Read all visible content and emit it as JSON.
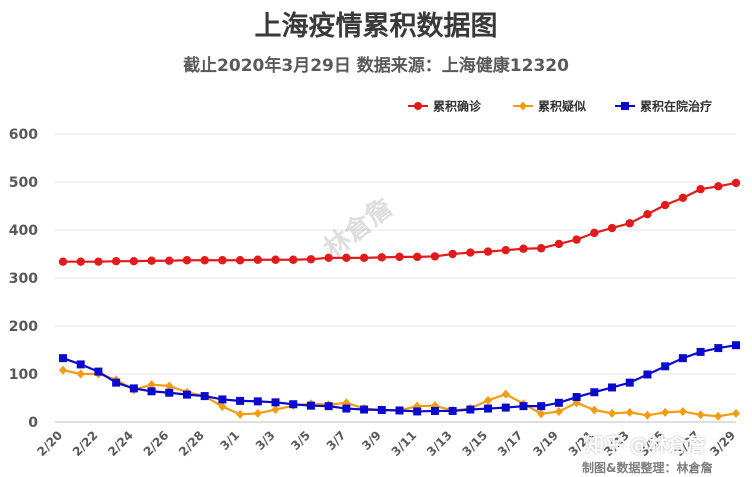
{
  "title": "上海疫情累积数据图",
  "subtitle": "截止2020年3月29日 数据来源：上海健康12320",
  "watermark": "林倉詹",
  "zhihu_watermark": "知乎 @林倉詹",
  "credit": "制图&数据整理：林倉詹",
  "chart_data": {
    "type": "line",
    "title": "上海疫情累积数据图",
    "subtitle": "截止2020年3月29日 数据来源：上海健康12320",
    "ylim": [
      0,
      600
    ],
    "yticks": [
      0,
      100,
      200,
      300,
      400,
      500,
      600
    ],
    "grid": true,
    "legend_position": "top-right",
    "x": [
      "2/20",
      "2/21",
      "2/22",
      "2/23",
      "2/24",
      "2/25",
      "2/26",
      "2/27",
      "2/28",
      "2/29",
      "3/1",
      "3/2",
      "3/3",
      "3/4",
      "3/5",
      "3/6",
      "3/7",
      "3/8",
      "3/9",
      "3/10",
      "3/11",
      "3/12",
      "3/13",
      "3/14",
      "3/15",
      "3/16",
      "3/17",
      "3/18",
      "3/19",
      "3/20",
      "3/21",
      "3/22",
      "3/23",
      "3/24",
      "3/25",
      "3/26",
      "3/27",
      "3/28",
      "3/29"
    ],
    "xtick_labels": [
      "2/20",
      "2/22",
      "2/24",
      "2/26",
      "2/28",
      "3/1",
      "3/3",
      "3/5",
      "3/7",
      "3/9",
      "3/11",
      "3/13",
      "3/15",
      "3/17",
      "3/19",
      "3/21",
      "3/23",
      "3/25",
      "3/27",
      "3/29"
    ],
    "series": [
      {
        "name": "累积确诊",
        "color": "#e31a1c",
        "marker": "circle",
        "values": [
          334,
          334,
          334,
          335,
          335,
          336,
          336,
          337,
          337,
          337,
          337,
          338,
          338,
          338,
          339,
          342,
          342,
          342,
          343,
          344,
          344,
          345,
          350,
          353,
          355,
          358,
          361,
          362,
          371,
          380,
          394,
          404,
          414,
          433,
          452,
          467,
          485,
          491,
          498
        ]
      },
      {
        "name": "累积疑似",
        "color": "#f39c12",
        "marker": "diamond",
        "values": [
          108,
          100,
          100,
          88,
          67,
          78,
          75,
          62,
          54,
          32,
          16,
          18,
          26,
          34,
          38,
          36,
          40,
          28,
          25,
          24,
          33,
          34,
          24,
          28,
          45,
          58,
          38,
          17,
          22,
          40,
          25,
          18,
          20,
          14,
          20,
          22,
          15,
          12,
          18
        ]
      },
      {
        "name": "累积在院治疗",
        "color": "#0a0acc",
        "marker": "square",
        "values": [
          133,
          120,
          105,
          82,
          70,
          64,
          61,
          57,
          54,
          47,
          44,
          43,
          41,
          37,
          34,
          33,
          28,
          26,
          25,
          24,
          22,
          23,
          23,
          26,
          28,
          30,
          33,
          33,
          40,
          52,
          62,
          72,
          82,
          99,
          116,
          133,
          146,
          154,
          160
        ]
      }
    ]
  }
}
